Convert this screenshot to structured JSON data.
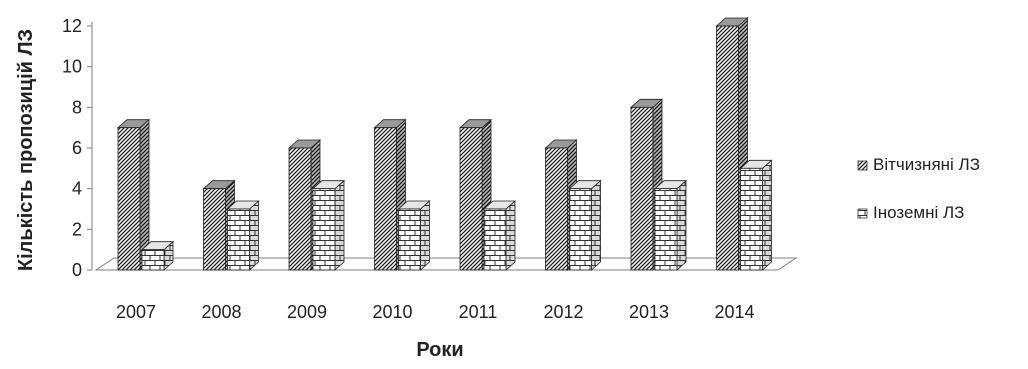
{
  "chart_data": {
    "type": "bar",
    "style": "3d-clustered",
    "title": "",
    "xlabel": "Роки",
    "ylabel": "Кількість пропозицій ЛЗ",
    "categories": [
      "2007",
      "2008",
      "2009",
      "2010",
      "2011",
      "2012",
      "2013",
      "2014"
    ],
    "series": [
      {
        "name": "Вітчизняні ЛЗ",
        "values": [
          7,
          4,
          6,
          7,
          7,
          6,
          8,
          12
        ]
      },
      {
        "name": "Іноземні ЛЗ",
        "values": [
          1,
          3,
          4,
          3,
          3,
          4,
          4,
          5
        ]
      }
    ],
    "ylim": [
      0,
      12
    ],
    "yticks": [
      "0",
      "2",
      "4",
      "6",
      "8",
      "10",
      "12"
    ],
    "grid": false,
    "legend": "right"
  }
}
